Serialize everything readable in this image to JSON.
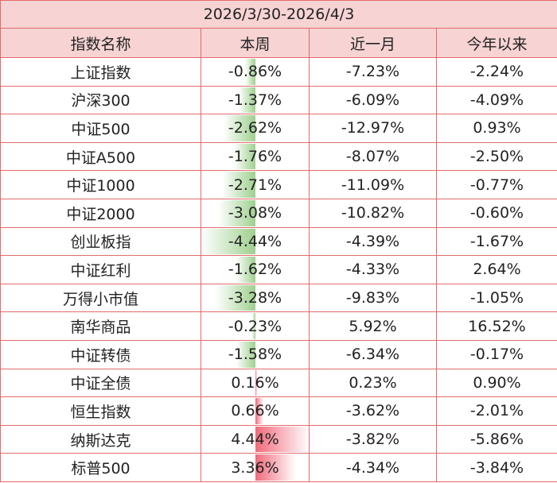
{
  "date_range": "2026/3/30-2026/4/3",
  "headers": [
    "指数名称",
    "本周",
    "近一月",
    "今年以来"
  ],
  "rows": [
    {
      "name": "上证指数",
      "week": "-0.86%",
      "week_value": -0.86,
      "month": "-7.23%",
      "ytd": "-2.24%"
    },
    {
      "name": "沪深300",
      "week": "-1.37%",
      "week_value": -1.37,
      "month": "-6.09%",
      "ytd": "-4.09%"
    },
    {
      "name": "中证500",
      "week": "-2.62%",
      "week_value": -2.62,
      "month": "-12.97%",
      "ytd": "0.93%"
    },
    {
      "name": "中证A500",
      "week": "-1.76%",
      "week_value": -1.76,
      "month": "-8.07%",
      "ytd": "-2.50%"
    },
    {
      "name": "中证1000",
      "week": "-2.71%",
      "week_value": -2.71,
      "month": "-11.09%",
      "ytd": "-0.77%"
    },
    {
      "name": "中证2000",
      "week": "-3.08%",
      "week_value": -3.08,
      "month": "-10.82%",
      "ytd": "-0.60%"
    },
    {
      "name": "创业板指",
      "week": "-4.44%",
      "week_value": -4.44,
      "month": "-4.39%",
      "ytd": "-1.67%"
    },
    {
      "name": "中证红利",
      "week": "-1.62%",
      "week_value": -1.62,
      "month": "-4.33%",
      "ytd": "2.64%"
    },
    {
      "name": "万得小市值",
      "week": "-3.28%",
      "week_value": -3.28,
      "month": "-9.83%",
      "ytd": "-1.05%"
    },
    {
      "name": "南华商品",
      "week": "-0.23%",
      "week_value": -0.23,
      "month": "5.92%",
      "ytd": "16.52%"
    },
    {
      "name": "中证转债",
      "week": "-1.58%",
      "week_value": -1.58,
      "month": "-6.34%",
      "ytd": "-0.17%"
    },
    {
      "name": "中证全债",
      "week": "0.16%",
      "week_value": 0.16,
      "month": "0.23%",
      "ytd": "0.90%"
    },
    {
      "name": "恒生指数",
      "week": "0.66%",
      "week_value": 0.66,
      "month": "-3.62%",
      "ytd": "-2.01%"
    },
    {
      "name": "纳斯达克",
      "week": "4.44%",
      "week_value": 4.44,
      "month": "-3.82%",
      "ytd": "-5.86%"
    },
    {
      "name": "标普500",
      "week": "3.36%",
      "week_value": 3.36,
      "month": "-4.34%",
      "ytd": "-3.84%"
    }
  ],
  "colors": {
    "header_bg": "#f7d3d3",
    "border": "#e26b6b",
    "negative_bar": "#9fd08f",
    "positive_bar": "#f06a7c"
  }
}
